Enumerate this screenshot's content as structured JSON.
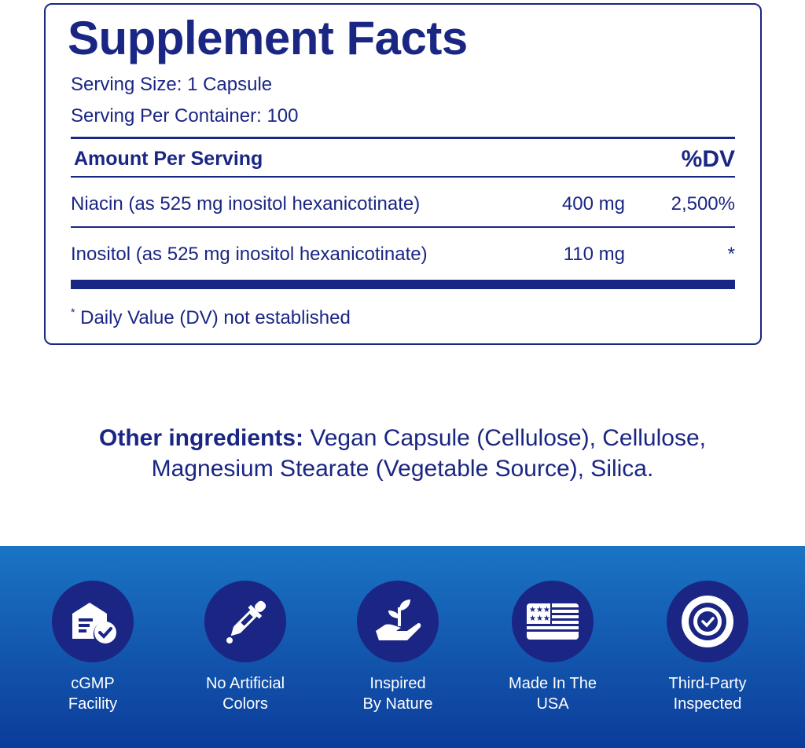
{
  "facts": {
    "title": "Supplement Facts",
    "serving_size": "Serving Size: 1 Capsule",
    "servings_per_container": "Serving Per Container: 100",
    "header_amount": "Amount Per Serving",
    "header_dv": "%DV",
    "rows": [
      {
        "name": "Niacin (as 525 mg inositol hexanicotinate)",
        "amount": "400 mg",
        "dv": "2,500%"
      },
      {
        "name": "Inositol (as 525 mg inositol hexanicotinate)",
        "amount": "110 mg",
        "dv": "*"
      }
    ],
    "footnote_mark": "*",
    "footnote": "Daily Value (DV) not established"
  },
  "other": {
    "label": "Other ingredients:",
    "line1": " Vegan Capsule (Cellulose), Cellulose,",
    "line2": "Magnesium Stearate (Vegetable Source), Silica."
  },
  "colors": {
    "navy": "#1a2683",
    "band_top": "#1a74c4",
    "band_bottom": "#0c3c9a"
  },
  "badges": [
    {
      "icon": "facility-check-icon",
      "line1": "cGMP",
      "line2": "Facility"
    },
    {
      "icon": "dropper-icon",
      "line1": "No Artificial",
      "line2": "Colors"
    },
    {
      "icon": "hand-plant-icon",
      "line1": "Inspired",
      "line2": "By Nature"
    },
    {
      "icon": "usa-flag-icon",
      "line1": "Made In The",
      "line2": "USA"
    },
    {
      "icon": "seal-check-icon",
      "line1": "Third-Party",
      "line2": "Inspected"
    }
  ]
}
